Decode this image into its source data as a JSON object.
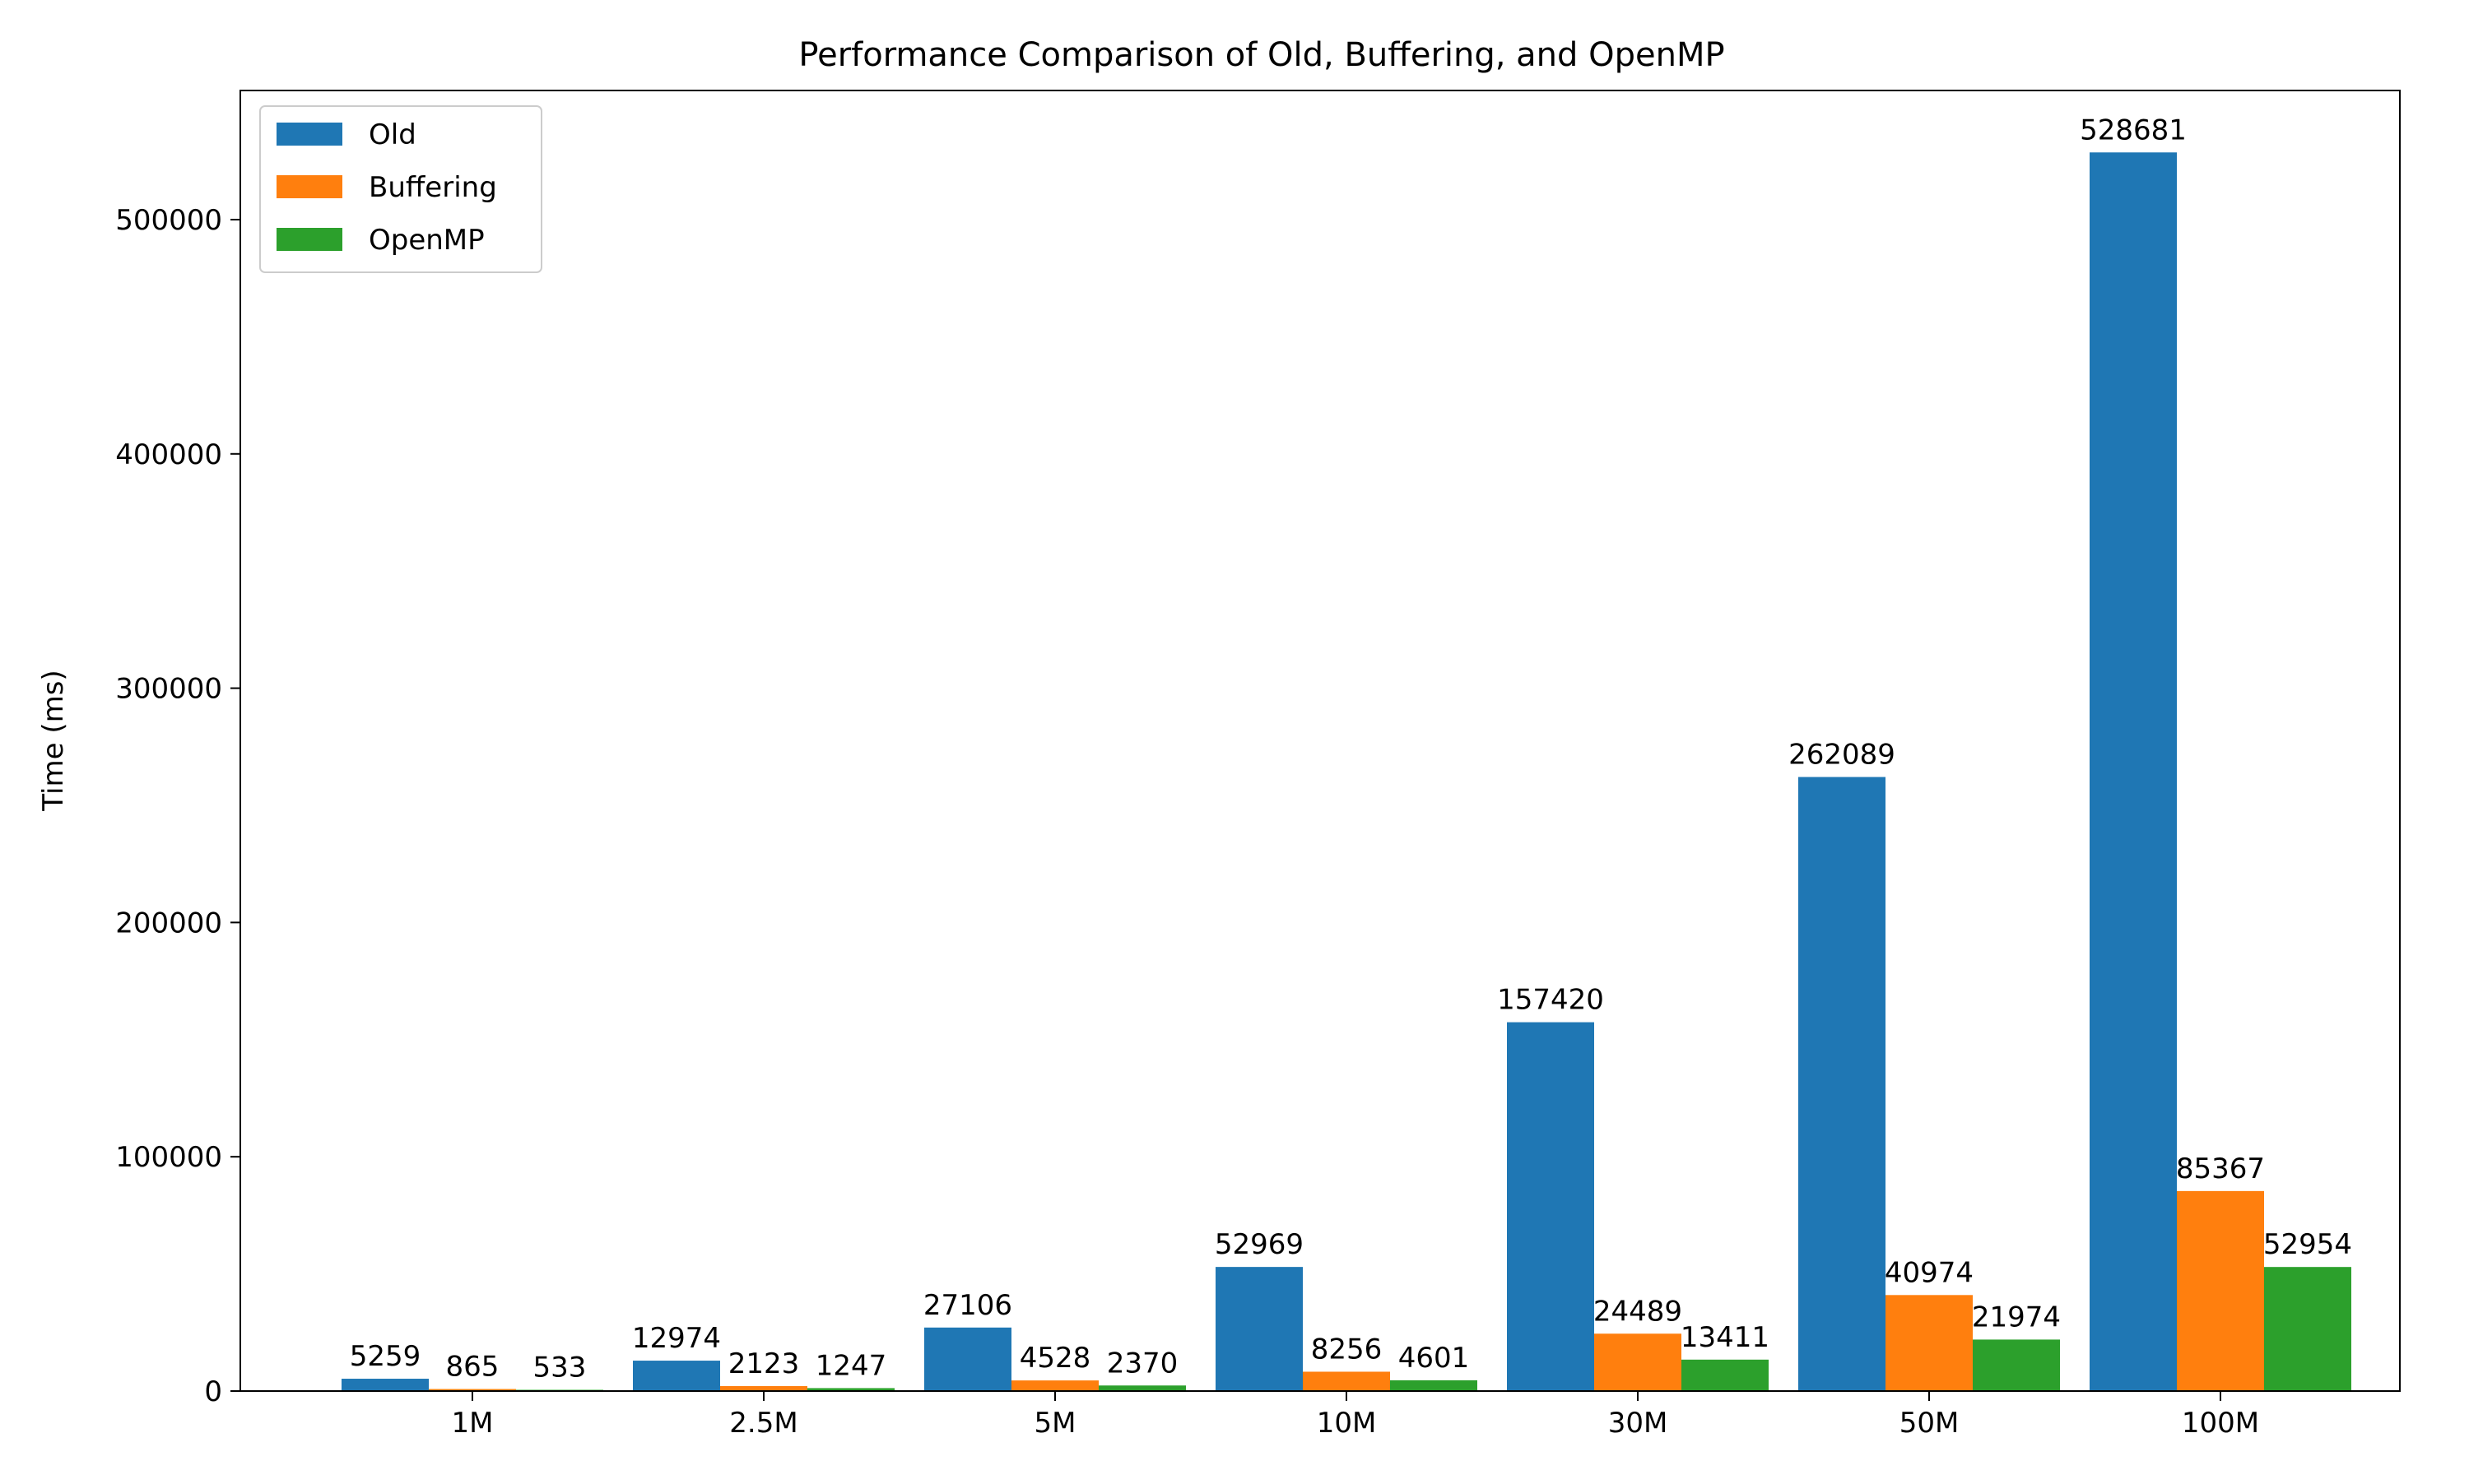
{
  "chart_data": {
    "type": "bar",
    "title": "Performance Comparison of Old, Buffering, and OpenMP",
    "xlabel": "",
    "ylabel": "Time (ms)",
    "categories": [
      "1M",
      "2.5M",
      "5M",
      "10M",
      "30M",
      "50M",
      "100M"
    ],
    "series": [
      {
        "name": "Old",
        "color": "#1f77b4",
        "values": [
          5259,
          12974,
          27106,
          52969,
          157420,
          262089,
          528681
        ]
      },
      {
        "name": "Buffering",
        "color": "#ff7f0e",
        "values": [
          865,
          2123,
          4528,
          8256,
          24489,
          40974,
          85367
        ]
      },
      {
        "name": "OpenMP",
        "color": "#2ca02c",
        "values": [
          533,
          1247,
          2370,
          4601,
          13411,
          21974,
          52954
        ]
      }
    ],
    "ylim": [
      0,
      555115
    ],
    "yticks": [
      0,
      100000,
      200000,
      300000,
      400000,
      500000
    ],
    "grid": false,
    "legend_position": "top-left",
    "data_labels": true
  }
}
